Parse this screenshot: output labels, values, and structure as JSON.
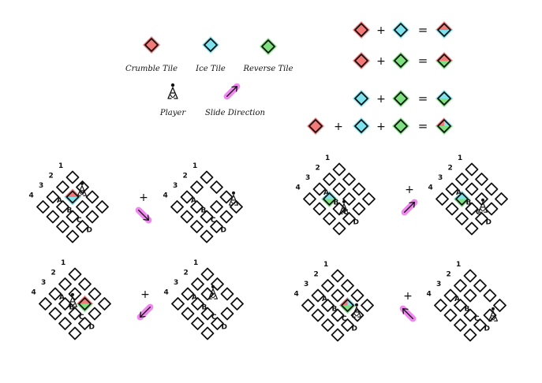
{
  "legend": {
    "items": [
      {
        "label": "Crumble Tile",
        "icon": "crumble-tile-icon",
        "color": "#f47a7a"
      },
      {
        "label": "Ice Tile",
        "icon": "ice-tile-icon",
        "color": "#7fe3ee"
      },
      {
        "label": "Reverse Tile",
        "icon": "reverse-tile-icon",
        "color": "#7ee07e"
      },
      {
        "label": "Player",
        "icon": "player-icon"
      },
      {
        "label": "Slide Direction",
        "icon": "slide-direction-icon",
        "color": "#ee88ee"
      }
    ]
  },
  "combos": [
    {
      "operands": [
        "crumble",
        "ice"
      ],
      "plus": "+",
      "equals": "="
    },
    {
      "operands": [
        "crumble",
        "reverse"
      ],
      "plus": "+",
      "equals": "="
    },
    {
      "operands": [
        "ice",
        "reverse"
      ],
      "plus": "+",
      "equals": "="
    },
    {
      "operands": [
        "crumble",
        "ice",
        "reverse"
      ],
      "plus": "+",
      "equals": "="
    }
  ],
  "colors": {
    "crumble": "#f47a7a",
    "ice": "#7fe3ee",
    "reverse": "#7ee07e",
    "slide": "#ee88ee",
    "ink": "#111111"
  },
  "grid_labels": {
    "rows": [
      "1",
      "2",
      "3",
      "4"
    ],
    "cols": [
      "A",
      "B",
      "C",
      "D"
    ]
  },
  "examples": [
    {
      "operator": "+",
      "arrow": "down-right"
    },
    {
      "operator": "+",
      "arrow": "up-right"
    },
    {
      "operator": "+",
      "arrow": "down-left"
    },
    {
      "operator": "+",
      "arrow": "up-left"
    }
  ]
}
